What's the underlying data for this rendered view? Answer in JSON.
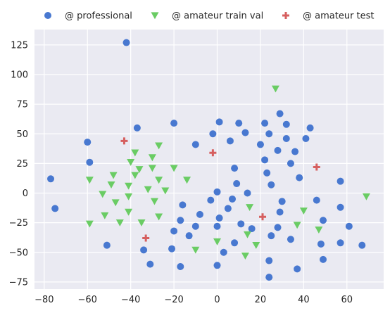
{
  "chart_data": {
    "type": "scatter",
    "title": "",
    "xlabel": "",
    "ylabel": "",
    "xlim": [
      -84.5,
      77.0
    ],
    "ylim": [
      -81.0,
      138.0
    ],
    "xticks": [
      -80,
      -60,
      -40,
      -20,
      0,
      20,
      40,
      60
    ],
    "xtick_labels": [
      "−80",
      "−60",
      "−40",
      "−20",
      "0",
      "20",
      "40",
      "60"
    ],
    "yticks": [
      -75,
      -50,
      -25,
      0,
      25,
      50,
      75,
      100,
      125
    ],
    "ytick_labels": [
      "−75",
      "−50",
      "−25",
      "0",
      "25",
      "50",
      "75",
      "100",
      "125"
    ],
    "grid": true,
    "legend_position": "top",
    "background_color": "#eaeaf2",
    "series": [
      {
        "name": "@ professional",
        "marker": "circle",
        "color": "#4878d0",
        "points": [
          [
            -77,
            12
          ],
          [
            -75,
            -13
          ],
          [
            -60,
            43
          ],
          [
            -59,
            26
          ],
          [
            -51,
            -44
          ],
          [
            -42,
            127
          ],
          [
            -37,
            55
          ],
          [
            -34,
            -48
          ],
          [
            -31,
            -60
          ],
          [
            -21,
            -47
          ],
          [
            -20,
            59
          ],
          [
            -20,
            -32
          ],
          [
            -17,
            -62
          ],
          [
            -17,
            -23
          ],
          [
            -16,
            -10
          ],
          [
            -13,
            -36
          ],
          [
            -10,
            41
          ],
          [
            -10,
            -28
          ],
          [
            -8,
            -18
          ],
          [
            -3,
            -6
          ],
          [
            -2,
            50
          ],
          [
            0,
            1
          ],
          [
            0,
            -28
          ],
          [
            0,
            -61
          ],
          [
            1,
            -21
          ],
          [
            1,
            60
          ],
          [
            3,
            -50
          ],
          [
            5,
            -13
          ],
          [
            6,
            44
          ],
          [
            7,
            -5
          ],
          [
            8,
            21
          ],
          [
            8,
            -42
          ],
          [
            9,
            8
          ],
          [
            10,
            59
          ],
          [
            11,
            -26
          ],
          [
            13,
            51
          ],
          [
            14,
            0
          ],
          [
            16,
            -30
          ],
          [
            20,
            41
          ],
          [
            22,
            59
          ],
          [
            22,
            28
          ],
          [
            23,
            17
          ],
          [
            24,
            50
          ],
          [
            24,
            -57
          ],
          [
            24,
            -71
          ],
          [
            25,
            -36
          ],
          [
            25,
            7
          ],
          [
            28,
            36
          ],
          [
            28,
            -29
          ],
          [
            29,
            67
          ],
          [
            29,
            -16
          ],
          [
            30,
            -7
          ],
          [
            32,
            58
          ],
          [
            32,
            46
          ],
          [
            34,
            25
          ],
          [
            34,
            -39
          ],
          [
            36,
            35
          ],
          [
            37,
            -64
          ],
          [
            38,
            13
          ],
          [
            41,
            46
          ],
          [
            43,
            55
          ],
          [
            46,
            -6
          ],
          [
            48,
            -43
          ],
          [
            49,
            -23
          ],
          [
            49,
            -56
          ],
          [
            57,
            10
          ],
          [
            57,
            -12
          ],
          [
            57,
            -42
          ],
          [
            61,
            -28
          ],
          [
            67,
            -44
          ]
        ]
      },
      {
        "name": "@ amateur train val",
        "marker": "triangle_down",
        "color": "#6acc64",
        "points": [
          [
            -59,
            11
          ],
          [
            -59,
            -26
          ],
          [
            -53,
            -1
          ],
          [
            -52,
            -19
          ],
          [
            -49,
            7
          ],
          [
            -48,
            15
          ],
          [
            -47,
            -8
          ],
          [
            -45,
            -25
          ],
          [
            -41,
            6
          ],
          [
            -41,
            -3
          ],
          [
            -41,
            -16
          ],
          [
            -40,
            26
          ],
          [
            -38,
            34
          ],
          [
            -38,
            15
          ],
          [
            -36,
            20
          ],
          [
            -35,
            -25
          ],
          [
            -32,
            3
          ],
          [
            -30,
            21
          ],
          [
            -30,
            30
          ],
          [
            -29,
            -7
          ],
          [
            -27,
            40
          ],
          [
            -27,
            11
          ],
          [
            -27,
            -20
          ],
          [
            -24,
            2
          ],
          [
            -20,
            21
          ],
          [
            -14,
            11
          ],
          [
            -10,
            -48
          ],
          [
            0,
            -41
          ],
          [
            13,
            -53
          ],
          [
            14,
            -35
          ],
          [
            15,
            -12
          ],
          [
            18,
            -44
          ],
          [
            27,
            88
          ],
          [
            37,
            -27
          ],
          [
            40,
            -15
          ],
          [
            47,
            -31
          ],
          [
            69,
            -3
          ]
        ]
      },
      {
        "name": "@ amateur test",
        "marker": "plus",
        "color": "#d65f5f",
        "points": [
          [
            -43,
            44
          ],
          [
            -33,
            -38
          ],
          [
            -2,
            34
          ],
          [
            21,
            -20
          ],
          [
            46,
            22
          ]
        ]
      }
    ]
  }
}
